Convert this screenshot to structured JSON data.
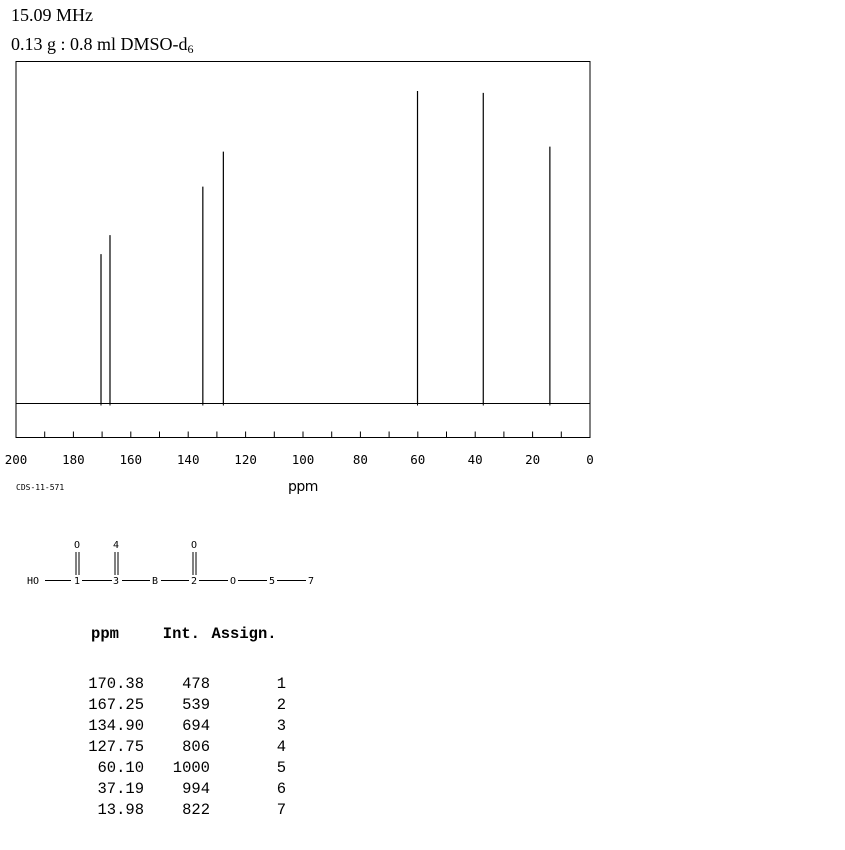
{
  "header": {
    "frequency": "15.09 MHz",
    "sample_main": "0.13 g : 0.8 ml DMSO-d",
    "sample_sub": "6"
  },
  "chart_data": {
    "type": "line",
    "title": "",
    "xlabel": "ppm",
    "ylabel": "",
    "xlim": [
      200,
      0
    ],
    "reversed_x": true,
    "ylim": [
      0,
      1000
    ],
    "x_ticks": [
      200,
      180,
      160,
      140,
      120,
      100,
      80,
      60,
      40,
      20,
      0
    ],
    "code": "CDS-11-571",
    "grid": false,
    "peaks": [
      {
        "ppm": 170.38,
        "intensity": 478,
        "assign": "1"
      },
      {
        "ppm": 167.25,
        "intensity": 539,
        "assign": "2"
      },
      {
        "ppm": 134.9,
        "intensity": 694,
        "assign": "3"
      },
      {
        "ppm": 127.75,
        "intensity": 806,
        "assign": "4"
      },
      {
        "ppm": 60.1,
        "intensity": 1000,
        "assign": "5"
      },
      {
        "ppm": 37.19,
        "intensity": 994,
        "assign": "6"
      },
      {
        "ppm": 13.98,
        "intensity": 822,
        "assign": "7"
      }
    ]
  },
  "structure": {
    "atoms": [
      "HO",
      "1",
      "3",
      "B",
      "2",
      "O",
      "5",
      "7"
    ],
    "top_labels": [
      "O",
      "4",
      "O"
    ]
  },
  "table": {
    "headers": [
      "ppm",
      "Int.",
      "Assign."
    ],
    "rows": [
      [
        "170.38",
        "478",
        "1"
      ],
      [
        "167.25",
        "539",
        "2"
      ],
      [
        "134.90",
        "694",
        "3"
      ],
      [
        "127.75",
        "806",
        "4"
      ],
      [
        "60.10",
        "1000",
        "5"
      ],
      [
        "37.19",
        "994",
        "6"
      ],
      [
        "13.98",
        "822",
        "7"
      ]
    ]
  }
}
